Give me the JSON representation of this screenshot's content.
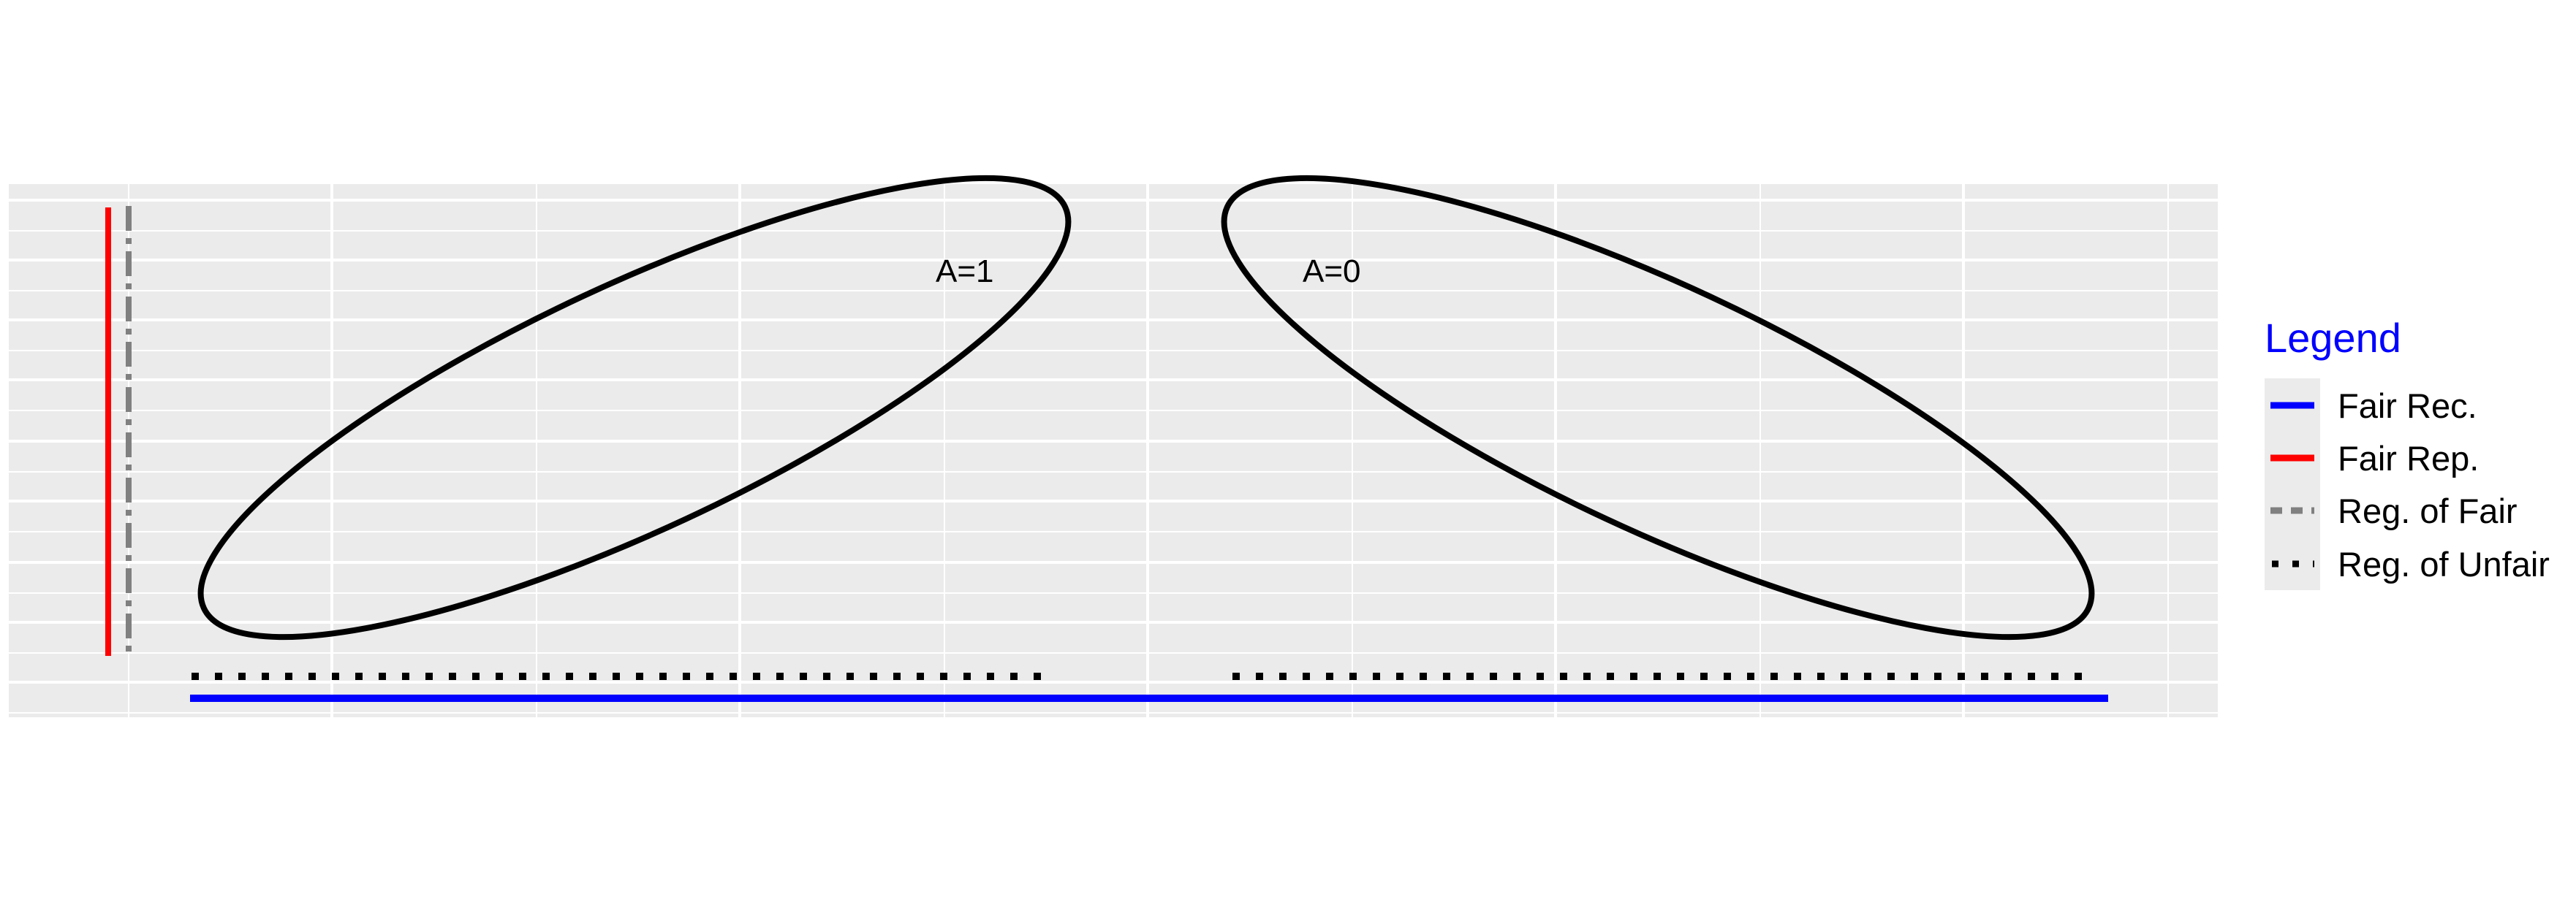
{
  "panel": {
    "background": "#ebebeb",
    "grid_color": "#ffffff",
    "grid": true
  },
  "annotations": {
    "group_one": "A=1",
    "group_zero": "A=0"
  },
  "legend": {
    "title": "Legend",
    "title_color": "#0000ff",
    "background": "#ebebeb",
    "items": [
      {
        "label": "Fair Rec.",
        "color": "#0000ff",
        "style": "solid"
      },
      {
        "label": "Fair Rep.",
        "color": "#ff0000",
        "style": "solid"
      },
      {
        "label": "Reg. of Fair",
        "color": "#808080",
        "style": "dashed"
      },
      {
        "label": "Reg. of Unfair",
        "color": "#000000",
        "style": "dotted"
      }
    ]
  }
}
